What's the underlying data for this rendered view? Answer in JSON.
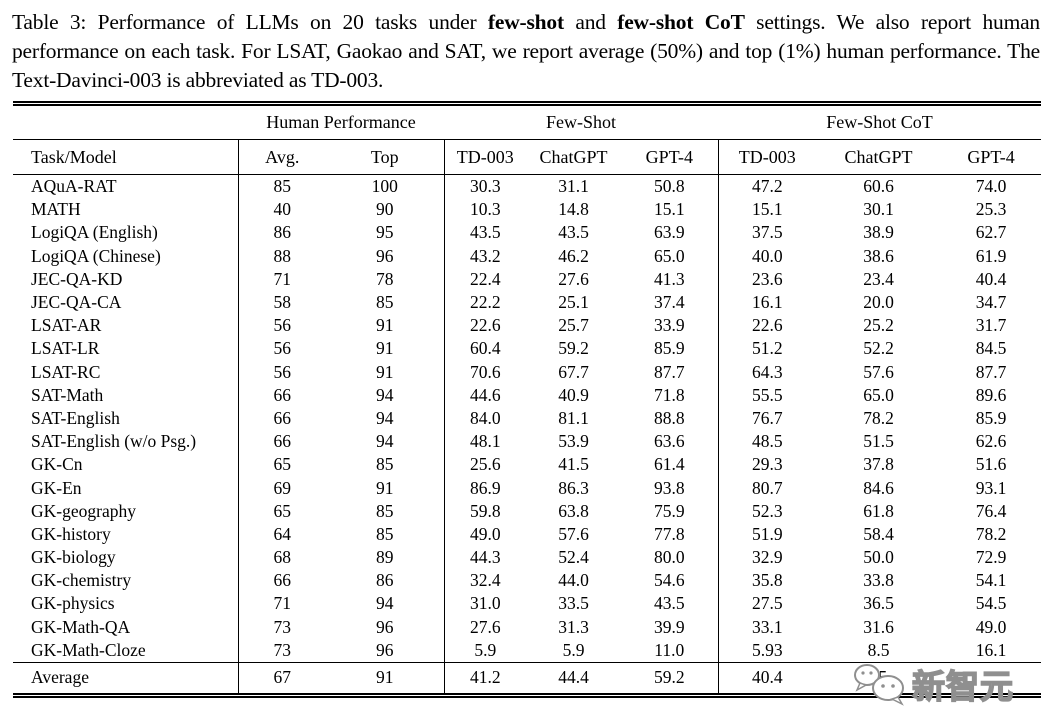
{
  "caption": {
    "prefix": "Table 3: Performance of LLMs on 20 tasks under ",
    "bold1": "few-shot",
    "mid": " and ",
    "bold2": "few-shot CoT",
    "suffix": " settings.  We also report human performance on each task. For LSAT, Gaokao and SAT, we report average (50%) and top (1%) human performance. The Text-Davinci-003 is abbreviated as TD-003."
  },
  "table": {
    "group_headers": [
      {
        "label": "Human Performance",
        "span": 2
      },
      {
        "label": "Few-Shot",
        "span": 3
      },
      {
        "label": "Few-Shot CoT",
        "span": 3
      }
    ],
    "column_headers": [
      "Task/Model",
      "Avg.",
      "Top",
      "TD-003",
      "ChatGPT",
      "GPT-4",
      "TD-003",
      "ChatGPT",
      "GPT-4"
    ],
    "rows": [
      [
        "AQuA-RAT",
        "85",
        "100",
        "30.3",
        "31.1",
        "50.8",
        "47.2",
        "60.6",
        "74.0"
      ],
      [
        "MATH",
        "40",
        "90",
        "10.3",
        "14.8",
        "15.1",
        "15.1",
        "30.1",
        "25.3"
      ],
      [
        "LogiQA (English)",
        "86",
        "95",
        "43.5",
        "43.5",
        "63.9",
        "37.5",
        "38.9",
        "62.7"
      ],
      [
        "LogiQA (Chinese)",
        "88",
        "96",
        "43.2",
        "46.2",
        "65.0",
        "40.0",
        "38.6",
        "61.9"
      ],
      [
        "JEC-QA-KD",
        "71",
        "78",
        "22.4",
        "27.6",
        "41.3",
        "23.6",
        "23.4",
        "40.4"
      ],
      [
        "JEC-QA-CA",
        "58",
        "85",
        "22.2",
        "25.1",
        "37.4",
        "16.1",
        "20.0",
        "34.7"
      ],
      [
        "LSAT-AR",
        "56",
        "91",
        "22.6",
        "25.7",
        "33.9",
        "22.6",
        "25.2",
        "31.7"
      ],
      [
        "LSAT-LR",
        "56",
        "91",
        "60.4",
        "59.2",
        "85.9",
        "51.2",
        "52.2",
        "84.5"
      ],
      [
        "LSAT-RC",
        "56",
        "91",
        "70.6",
        "67.7",
        "87.7",
        "64.3",
        "57.6",
        "87.7"
      ],
      [
        "SAT-Math",
        "66",
        "94",
        "44.6",
        "40.9",
        "71.8",
        "55.5",
        "65.0",
        "89.6"
      ],
      [
        "SAT-English",
        "66",
        "94",
        "84.0",
        "81.1",
        "88.8",
        "76.7",
        "78.2",
        "85.9"
      ],
      [
        "SAT-English (w/o Psg.)",
        "66",
        "94",
        "48.1",
        "53.9",
        "63.6",
        "48.5",
        "51.5",
        "62.6"
      ],
      [
        "GK-Cn",
        "65",
        "85",
        "25.6",
        "41.5",
        "61.4",
        "29.3",
        "37.8",
        "51.6"
      ],
      [
        "GK-En",
        "69",
        "91",
        "86.9",
        "86.3",
        "93.8",
        "80.7",
        "84.6",
        "93.1"
      ],
      [
        "GK-geography",
        "65",
        "85",
        "59.8",
        "63.8",
        "75.9",
        "52.3",
        "61.8",
        "76.4"
      ],
      [
        "GK-history",
        "64",
        "85",
        "49.0",
        "57.6",
        "77.8",
        "51.9",
        "58.4",
        "78.2"
      ],
      [
        "GK-biology",
        "68",
        "89",
        "44.3",
        "52.4",
        "80.0",
        "32.9",
        "50.0",
        "72.9"
      ],
      [
        "GK-chemistry",
        "66",
        "86",
        "32.4",
        "44.0",
        "54.6",
        "35.8",
        "33.8",
        "54.1"
      ],
      [
        "GK-physics",
        "71",
        "94",
        "31.0",
        "33.5",
        "43.5",
        "27.5",
        "36.5",
        "54.5"
      ],
      [
        "GK-Math-QA",
        "73",
        "96",
        "27.6",
        "31.3",
        "39.9",
        "33.1",
        "31.6",
        "49.0"
      ],
      [
        "GK-Math-Cloze",
        "73",
        "96",
        "5.9",
        "5.9",
        "11.0",
        "5.93",
        "8.5",
        "16.1"
      ]
    ],
    "average_row": [
      "Average",
      "67",
      "91",
      "41.2",
      "44.4",
      "59.2",
      "40.4",
      "45",
      ""
    ]
  },
  "watermark": {
    "text": "新智元",
    "icon": "wechat-icon",
    "stroke_color": "#8f8f8f"
  },
  "colors": {
    "text": "#000000",
    "background": "#ffffff",
    "rule": "#000000"
  }
}
